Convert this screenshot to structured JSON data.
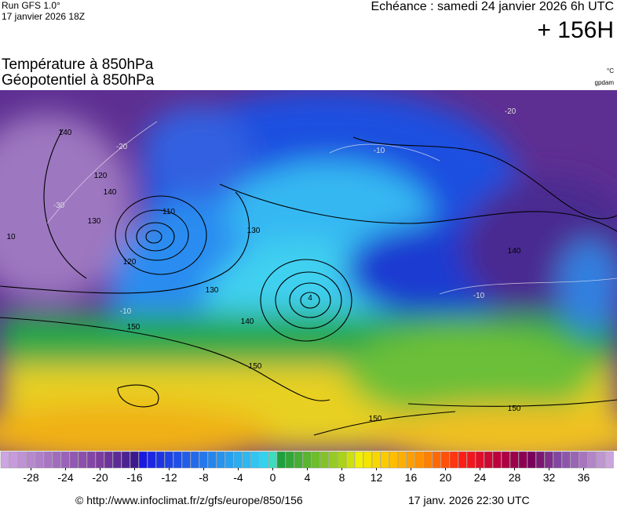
{
  "header": {
    "run": "Run GFS 1.0°",
    "run_date": "17 janvier 2026 18Z",
    "echeance": "Echéance : samedi 24 janvier 2026 6h UTC",
    "lead": "+ 156H"
  },
  "map": {
    "title_line1": "Température à 850hPa",
    "title_line2": "Géopotentiel à 850hPa",
    "unit_temp": "°C",
    "unit_geo": "gpdam",
    "contour_labels": [
      "140",
      "130",
      "110",
      "120",
      "130",
      "140",
      "150",
      "150",
      "150",
      "140",
      "130",
      "140",
      "-10",
      "-20",
      "-30",
      "-10",
      "-20",
      "-10",
      "10",
      "4",
      "120",
      "150"
    ]
  },
  "colorbar": {
    "ticks": [
      -28,
      -24,
      -20,
      -16,
      -12,
      -8,
      -4,
      0,
      4,
      8,
      12,
      16,
      20,
      24,
      28,
      32,
      36
    ]
  },
  "footer": {
    "source": "© http://www.infoclimat.fr/z/gfs/europe/850/156",
    "generated": "17 janv. 2026 22:30 UTC"
  }
}
